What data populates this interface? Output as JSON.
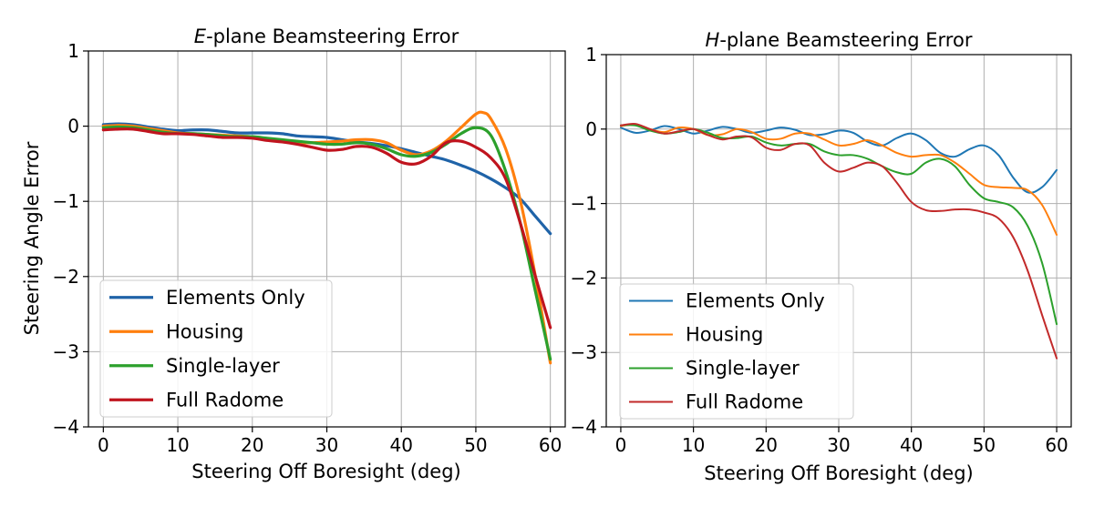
{
  "chart_data": [
    {
      "type": "line",
      "title_prefix": "E",
      "title_rest": "-plane Beamsteering Error",
      "xlabel": "Steering Off Boresight (deg)",
      "ylabel": "Steering Angle Error",
      "xlim": [
        -2,
        62
      ],
      "ylim": [
        -4,
        1
      ],
      "xticks": [
        0,
        10,
        20,
        30,
        40,
        50,
        60
      ],
      "xtick_labels": [
        "0",
        "10",
        "20",
        "30",
        "40",
        "50",
        "60"
      ],
      "yticks": [
        -4,
        -3,
        -2,
        -1,
        0,
        1
      ],
      "ytick_labels": [
        "−4",
        "−3",
        "−2",
        "−1",
        "0",
        "1"
      ],
      "grid": true,
      "legend_position": "lower-left",
      "series": [
        {
          "name": "Elements Only",
          "color": "#1f63a8",
          "points": [
            [
              0,
              0.02
            ],
            [
              2,
              0.03
            ],
            [
              4,
              0.02
            ],
            [
              6,
              -0.01
            ],
            [
              8,
              -0.04
            ],
            [
              10,
              -0.06
            ],
            [
              12,
              -0.05
            ],
            [
              14,
              -0.05
            ],
            [
              16,
              -0.07
            ],
            [
              18,
              -0.09
            ],
            [
              20,
              -0.09
            ],
            [
              22,
              -0.09
            ],
            [
              24,
              -0.1
            ],
            [
              26,
              -0.13
            ],
            [
              28,
              -0.14
            ],
            [
              30,
              -0.15
            ],
            [
              32,
              -0.18
            ],
            [
              34,
              -0.21
            ],
            [
              36,
              -0.23
            ],
            [
              38,
              -0.26
            ],
            [
              40,
              -0.3
            ],
            [
              42,
              -0.35
            ],
            [
              44,
              -0.4
            ],
            [
              46,
              -0.45
            ],
            [
              48,
              -0.52
            ],
            [
              50,
              -0.6
            ],
            [
              52,
              -0.7
            ],
            [
              54,
              -0.82
            ],
            [
              56,
              -0.97
            ],
            [
              58,
              -1.2
            ],
            [
              60,
              -1.43
            ]
          ]
        },
        {
          "name": "Housing",
          "color": "#ff7f0e",
          "points": [
            [
              0,
              0.0
            ],
            [
              2,
              0.01
            ],
            [
              4,
              0.0
            ],
            [
              6,
              -0.03
            ],
            [
              8,
              -0.06
            ],
            [
              10,
              -0.09
            ],
            [
              12,
              -0.1
            ],
            [
              14,
              -0.11
            ],
            [
              16,
              -0.12
            ],
            [
              18,
              -0.13
            ],
            [
              20,
              -0.14
            ],
            [
              22,
              -0.17
            ],
            [
              24,
              -0.2
            ],
            [
              26,
              -0.22
            ],
            [
              28,
              -0.22
            ],
            [
              30,
              -0.21
            ],
            [
              32,
              -0.2
            ],
            [
              34,
              -0.18
            ],
            [
              36,
              -0.18
            ],
            [
              38,
              -0.22
            ],
            [
              40,
              -0.32
            ],
            [
              42,
              -0.38
            ],
            [
              44,
              -0.33
            ],
            [
              46,
              -0.2
            ],
            [
              48,
              -0.02
            ],
            [
              50,
              0.16
            ],
            [
              51,
              0.18
            ],
            [
              52,
              0.1
            ],
            [
              54,
              -0.3
            ],
            [
              56,
              -1.0
            ],
            [
              58,
              -2.0
            ],
            [
              60,
              -3.15
            ]
          ]
        },
        {
          "name": "Single-layer",
          "color": "#2ca02c",
          "points": [
            [
              0,
              -0.02
            ],
            [
              2,
              -0.01
            ],
            [
              4,
              -0.02
            ],
            [
              6,
              -0.05
            ],
            [
              8,
              -0.08
            ],
            [
              10,
              -0.1
            ],
            [
              12,
              -0.1
            ],
            [
              14,
              -0.11
            ],
            [
              16,
              -0.13
            ],
            [
              18,
              -0.14
            ],
            [
              20,
              -0.14
            ],
            [
              22,
              -0.16
            ],
            [
              24,
              -0.18
            ],
            [
              26,
              -0.2
            ],
            [
              28,
              -0.22
            ],
            [
              30,
              -0.24
            ],
            [
              32,
              -0.24
            ],
            [
              34,
              -0.22
            ],
            [
              36,
              -0.24
            ],
            [
              38,
              -0.3
            ],
            [
              40,
              -0.38
            ],
            [
              42,
              -0.4
            ],
            [
              44,
              -0.35
            ],
            [
              46,
              -0.24
            ],
            [
              48,
              -0.1
            ],
            [
              50,
              -0.02
            ],
            [
              52,
              -0.12
            ],
            [
              54,
              -0.6
            ],
            [
              56,
              -1.3
            ],
            [
              58,
              -2.2
            ],
            [
              60,
              -3.1
            ]
          ]
        },
        {
          "name": "Full Radome",
          "color": "#c0141e",
          "points": [
            [
              0,
              -0.05
            ],
            [
              2,
              -0.04
            ],
            [
              4,
              -0.04
            ],
            [
              6,
              -0.07
            ],
            [
              8,
              -0.1
            ],
            [
              10,
              -0.1
            ],
            [
              12,
              -0.11
            ],
            [
              14,
              -0.13
            ],
            [
              16,
              -0.15
            ],
            [
              18,
              -0.15
            ],
            [
              20,
              -0.16
            ],
            [
              22,
              -0.19
            ],
            [
              24,
              -0.21
            ],
            [
              26,
              -0.24
            ],
            [
              28,
              -0.28
            ],
            [
              30,
              -0.32
            ],
            [
              32,
              -0.31
            ],
            [
              34,
              -0.27
            ],
            [
              36,
              -0.28
            ],
            [
              38,
              -0.36
            ],
            [
              40,
              -0.48
            ],
            [
              42,
              -0.5
            ],
            [
              44,
              -0.4
            ],
            [
              46,
              -0.22
            ],
            [
              48,
              -0.2
            ],
            [
              50,
              -0.28
            ],
            [
              52,
              -0.42
            ],
            [
              54,
              -0.7
            ],
            [
              56,
              -1.3
            ],
            [
              58,
              -2.0
            ],
            [
              60,
              -2.68
            ]
          ]
        }
      ]
    },
    {
      "type": "line",
      "title_prefix": "H",
      "title_rest": "-plane Beamsteering Error",
      "xlabel": "Steering Off Boresight (deg)",
      "ylabel": "",
      "xlim": [
        -2,
        62
      ],
      "ylim": [
        -4,
        1
      ],
      "xticks": [
        0,
        10,
        20,
        30,
        40,
        50,
        60
      ],
      "xtick_labels": [
        "0",
        "10",
        "20",
        "30",
        "40",
        "50",
        "60"
      ],
      "yticks": [
        -4,
        -3,
        -2,
        -1,
        0,
        1
      ],
      "ytick_labels": [
        "−4",
        "−3",
        "−2",
        "−1",
        "0",
        "1"
      ],
      "grid": true,
      "legend_position": "lower-left",
      "series": [
        {
          "name": "Elements Only",
          "color": "#1f77b4",
          "points": [
            [
              0,
              0.02
            ],
            [
              2,
              -0.05
            ],
            [
              4,
              -0.02
            ],
            [
              6,
              0.04
            ],
            [
              8,
              0.0
            ],
            [
              10,
              -0.06
            ],
            [
              12,
              -0.02
            ],
            [
              14,
              0.03
            ],
            [
              16,
              0.0
            ],
            [
              18,
              -0.05
            ],
            [
              20,
              -0.02
            ],
            [
              22,
              0.02
            ],
            [
              24,
              -0.01
            ],
            [
              26,
              -0.08
            ],
            [
              28,
              -0.07
            ],
            [
              30,
              -0.02
            ],
            [
              32,
              -0.05
            ],
            [
              34,
              -0.17
            ],
            [
              36,
              -0.22
            ],
            [
              38,
              -0.12
            ],
            [
              40,
              -0.06
            ],
            [
              42,
              -0.15
            ],
            [
              44,
              -0.32
            ],
            [
              46,
              -0.37
            ],
            [
              48,
              -0.27
            ],
            [
              50,
              -0.22
            ],
            [
              52,
              -0.35
            ],
            [
              54,
              -0.65
            ],
            [
              56,
              -0.85
            ],
            [
              58,
              -0.78
            ],
            [
              60,
              -0.55
            ]
          ]
        },
        {
          "name": "Housing",
          "color": "#ff7f0e",
          "points": [
            [
              0,
              0.04
            ],
            [
              2,
              0.06
            ],
            [
              4,
              0.0
            ],
            [
              6,
              -0.04
            ],
            [
              8,
              0.02
            ],
            [
              10,
              0.0
            ],
            [
              12,
              -0.08
            ],
            [
              14,
              -0.07
            ],
            [
              16,
              0.0
            ],
            [
              18,
              -0.04
            ],
            [
              20,
              -0.13
            ],
            [
              22,
              -0.13
            ],
            [
              24,
              -0.06
            ],
            [
              26,
              -0.06
            ],
            [
              28,
              -0.14
            ],
            [
              30,
              -0.22
            ],
            [
              32,
              -0.2
            ],
            [
              34,
              -0.15
            ],
            [
              36,
              -0.22
            ],
            [
              38,
              -0.32
            ],
            [
              40,
              -0.37
            ],
            [
              42,
              -0.35
            ],
            [
              44,
              -0.35
            ],
            [
              46,
              -0.45
            ],
            [
              48,
              -0.6
            ],
            [
              50,
              -0.75
            ],
            [
              52,
              -0.78
            ],
            [
              54,
              -0.79
            ],
            [
              56,
              -0.82
            ],
            [
              58,
              -1.02
            ],
            [
              60,
              -1.42
            ]
          ]
        },
        {
          "name": "Single-layer",
          "color": "#2ca02c",
          "points": [
            [
              0,
              0.05
            ],
            [
              2,
              0.05
            ],
            [
              4,
              -0.02
            ],
            [
              6,
              -0.06
            ],
            [
              8,
              -0.04
            ],
            [
              10,
              0.0
            ],
            [
              12,
              -0.05
            ],
            [
              14,
              -0.12
            ],
            [
              16,
              -0.12
            ],
            [
              18,
              -0.1
            ],
            [
              20,
              -0.18
            ],
            [
              22,
              -0.22
            ],
            [
              24,
              -0.2
            ],
            [
              26,
              -0.2
            ],
            [
              28,
              -0.3
            ],
            [
              30,
              -0.35
            ],
            [
              32,
              -0.35
            ],
            [
              34,
              -0.4
            ],
            [
              36,
              -0.5
            ],
            [
              38,
              -0.58
            ],
            [
              40,
              -0.6
            ],
            [
              42,
              -0.45
            ],
            [
              44,
              -0.4
            ],
            [
              46,
              -0.5
            ],
            [
              48,
              -0.75
            ],
            [
              50,
              -0.93
            ],
            [
              52,
              -0.98
            ],
            [
              54,
              -1.05
            ],
            [
              56,
              -1.3
            ],
            [
              58,
              -1.8
            ],
            [
              60,
              -2.62
            ]
          ]
        },
        {
          "name": "Full Radome",
          "color": "#c22a2a",
          "points": [
            [
              0,
              0.05
            ],
            [
              2,
              0.07
            ],
            [
              4,
              0.0
            ],
            [
              6,
              -0.06
            ],
            [
              8,
              -0.03
            ],
            [
              10,
              0.0
            ],
            [
              12,
              -0.08
            ],
            [
              14,
              -0.14
            ],
            [
              16,
              -0.1
            ],
            [
              18,
              -0.11
            ],
            [
              20,
              -0.25
            ],
            [
              22,
              -0.28
            ],
            [
              24,
              -0.2
            ],
            [
              26,
              -0.22
            ],
            [
              28,
              -0.45
            ],
            [
              30,
              -0.57
            ],
            [
              32,
              -0.52
            ],
            [
              34,
              -0.45
            ],
            [
              36,
              -0.5
            ],
            [
              38,
              -0.72
            ],
            [
              40,
              -0.98
            ],
            [
              42,
              -1.09
            ],
            [
              44,
              -1.1
            ],
            [
              46,
              -1.08
            ],
            [
              48,
              -1.08
            ],
            [
              50,
              -1.12
            ],
            [
              52,
              -1.2
            ],
            [
              54,
              -1.45
            ],
            [
              56,
              -1.9
            ],
            [
              58,
              -2.5
            ],
            [
              60,
              -3.08
            ]
          ]
        }
      ]
    }
  ]
}
